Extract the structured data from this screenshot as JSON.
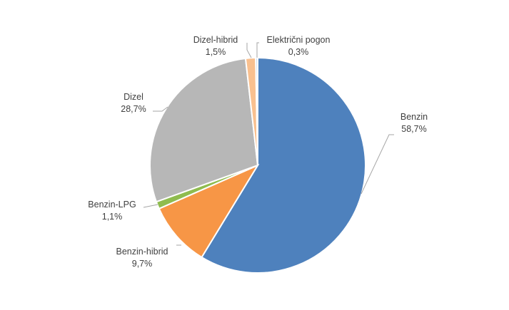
{
  "chart_data": {
    "type": "pie",
    "title": "",
    "legend": "none",
    "start_angle_deg": 0,
    "direction": "clockwise",
    "slices": [
      {
        "name": "Benzin",
        "value": 58.7,
        "label": "58,7%",
        "color": "#4e81bd"
      },
      {
        "name": "Benzin-hibrid",
        "value": 9.7,
        "label": "9,7%",
        "color": "#f79646"
      },
      {
        "name": "Benzin-LPG",
        "value": 1.1,
        "label": "1,1%",
        "color": "#8fbc4f"
      },
      {
        "name": "Dizel",
        "value": 28.7,
        "label": "28,7%",
        "color": "#b7b7b7"
      },
      {
        "name": "Dizel-hibrid",
        "value": 1.5,
        "label": "1,5%",
        "color": "#f9c08f"
      },
      {
        "name": "Električni pogon",
        "value": 0.3,
        "label": "0,3%",
        "color": "#c6d9f1"
      }
    ]
  }
}
